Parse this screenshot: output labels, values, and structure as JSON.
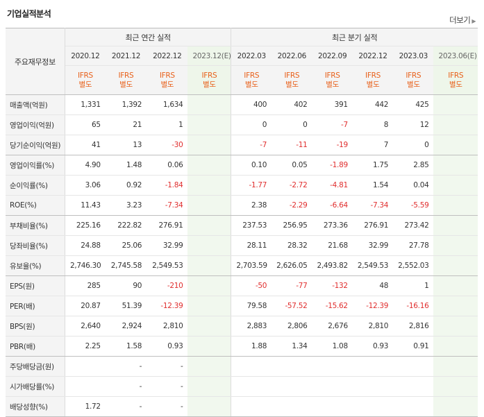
{
  "title": "기업실적분석",
  "more_label": "더보기",
  "side_header": "주요재무정보",
  "annual_header": "최근 연간 실적",
  "quarter_header": "최근 분기 실적",
  "periods": [
    "2020.12",
    "2021.12",
    "2022.12",
    "2023.12(E)",
    "2022.03",
    "2022.06",
    "2022.09",
    "2022.12",
    "2023.03",
    "2023.06(E)"
  ],
  "ifrs": [
    "IFRS\n별도",
    "IFRS\n별도",
    "IFRS\n별도",
    "IFRS\n별도",
    "IFRS\n별도",
    "IFRS\n별도",
    "IFRS\n별도",
    "IFRS\n별도",
    "IFRS\n별도",
    "IFRS\n별도"
  ],
  "rows": [
    {
      "label": "매출액(억원)",
      "values": [
        "1,331",
        "1,392",
        "1,634",
        "",
        "400",
        "402",
        "391",
        "442",
        "425",
        ""
      ]
    },
    {
      "label": "영업이익(억원)",
      "values": [
        "65",
        "21",
        "1",
        "",
        "0",
        "0",
        "-7",
        "8",
        "12",
        ""
      ]
    },
    {
      "label": "당기순이익(억원)",
      "values": [
        "41",
        "13",
        "-30",
        "",
        "-7",
        "-11",
        "-19",
        "7",
        "0",
        ""
      ]
    },
    {
      "label": "영업이익률(%)",
      "values": [
        "4.90",
        "1.48",
        "0.06",
        "",
        "0.10",
        "0.05",
        "-1.89",
        "1.75",
        "2.85",
        ""
      ]
    },
    {
      "label": "순이익률(%)",
      "values": [
        "3.06",
        "0.92",
        "-1.84",
        "",
        "-1.77",
        "-2.72",
        "-4.81",
        "1.54",
        "0.04",
        ""
      ]
    },
    {
      "label": "ROE(%)",
      "values": [
        "11.43",
        "3.23",
        "-7.34",
        "",
        "2.38",
        "-2.29",
        "-6.64",
        "-7.34",
        "-5.59",
        ""
      ]
    },
    {
      "label": "부채비율(%)",
      "values": [
        "225.16",
        "222.82",
        "276.91",
        "",
        "237.53",
        "256.95",
        "273.36",
        "276.91",
        "273.42",
        ""
      ]
    },
    {
      "label": "당좌비율(%)",
      "values": [
        "24.88",
        "25.06",
        "32.99",
        "",
        "28.11",
        "28.32",
        "21.68",
        "32.99",
        "27.78",
        ""
      ]
    },
    {
      "label": "유보율(%)",
      "values": [
        "2,746.30",
        "2,745.58",
        "2,549.53",
        "",
        "2,703.59",
        "2,626.05",
        "2,493.82",
        "2,549.53",
        "2,552.03",
        ""
      ]
    },
    {
      "label": "EPS(원)",
      "values": [
        "285",
        "90",
        "-210",
        "",
        "-50",
        "-77",
        "-132",
        "48",
        "1",
        ""
      ]
    },
    {
      "label": "PER(배)",
      "values": [
        "20.87",
        "51.39",
        "-12.39",
        "",
        "79.58",
        "-57.52",
        "-15.62",
        "-12.39",
        "-16.16",
        ""
      ]
    },
    {
      "label": "BPS(원)",
      "values": [
        "2,640",
        "2,924",
        "2,810",
        "",
        "2,883",
        "2,806",
        "2,676",
        "2,810",
        "2,816",
        ""
      ]
    },
    {
      "label": "PBR(배)",
      "values": [
        "2.25",
        "1.58",
        "0.93",
        "",
        "1.88",
        "1.34",
        "1.08",
        "0.93",
        "0.91",
        ""
      ]
    },
    {
      "label": "주당배당금(원)",
      "values": [
        "",
        "-",
        "-",
        "",
        "",
        "",
        "",
        "",
        "",
        ""
      ]
    },
    {
      "label": "시가배당률(%)",
      "values": [
        "",
        "-",
        "-",
        "",
        "",
        "",
        "",
        "",
        "",
        ""
      ]
    },
    {
      "label": "배당성향(%)",
      "values": [
        "1.72",
        "-",
        "-",
        "",
        "",
        "",
        "",
        "",
        "",
        ""
      ]
    }
  ],
  "colors": {
    "negative": "#e02d2d",
    "ifrs": "#e8601a",
    "estimate_bg": "#f1f8ee",
    "header_bg": "#f4f4f4"
  }
}
